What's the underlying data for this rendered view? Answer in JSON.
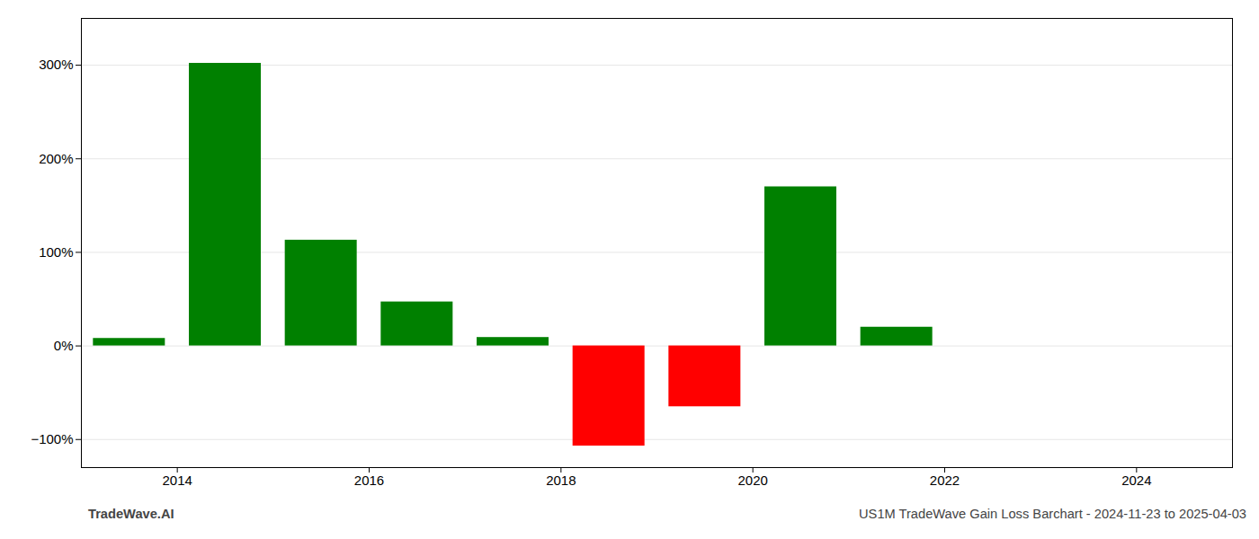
{
  "chart_data": {
    "type": "bar",
    "x": [
      2013.5,
      2014.5,
      2015.5,
      2016.5,
      2017.5,
      2018.5,
      2019.5,
      2020.5,
      2021.5,
      2022.5
    ],
    "values": [
      8,
      302,
      113,
      47,
      9,
      -107,
      -65,
      170,
      20,
      0
    ],
    "colors": [
      "#008000",
      "#008000",
      "#008000",
      "#008000",
      "#008000",
      "#ff0000",
      "#ff0000",
      "#008000",
      "#008000",
      "#008000"
    ],
    "ylim": [
      -130,
      350
    ],
    "yticks": [
      {
        "value": -100,
        "label": "−100%"
      },
      {
        "value": 0,
        "label": "0%"
      },
      {
        "value": 100,
        "label": "100%"
      },
      {
        "value": 200,
        "label": "200%"
      },
      {
        "value": 300,
        "label": "300%"
      }
    ],
    "xlim": [
      2013.0,
      2025.0
    ],
    "xticks": [
      2014,
      2016,
      2018,
      2020,
      2022,
      2024
    ],
    "grid": true,
    "annotations": [
      "TradeWave.AI",
      "US1M TradeWave Gain Loss Barchart - 2024-11-23 to 2025-04-03"
    ]
  }
}
